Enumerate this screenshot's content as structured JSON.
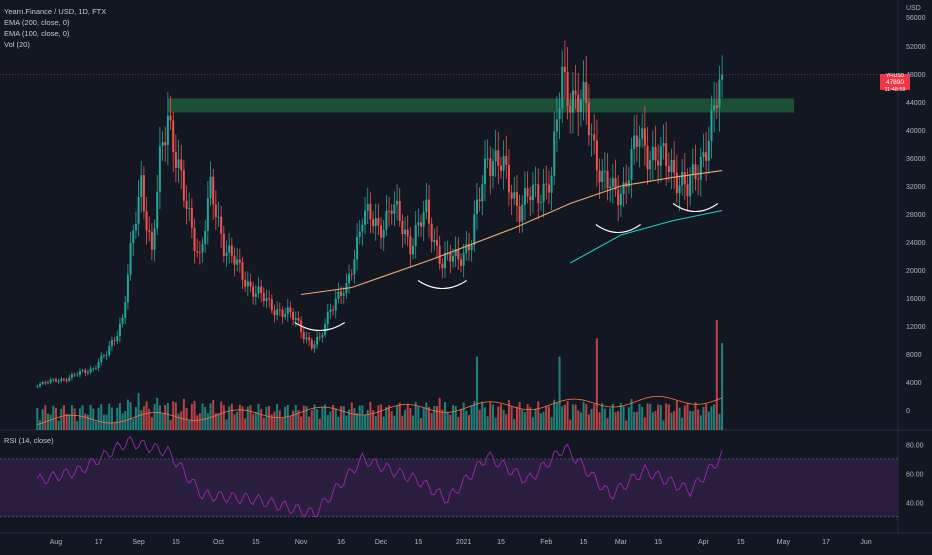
{
  "legend": {
    "symbol": "Yearn.Finance / USD, 1D, FTX",
    "ema200": "EMA (200, close, 0)",
    "ema100": "EMA (100, close, 0)",
    "vol": "Vol (20)",
    "rsi": "RSI (14, close)"
  },
  "axis": {
    "currency": "USD",
    "top_label": "56000",
    "price_ticks": [
      "52000",
      "48000",
      "44000",
      "40000",
      "36000",
      "32000",
      "28000",
      "24000",
      "20000",
      "16000",
      "12000",
      "8000",
      "4000",
      "0"
    ],
    "rsi_ticks": [
      "80.00",
      "60.00",
      "40.00"
    ],
    "x_ticks": [
      "Aug",
      "17",
      "Sep",
      "15",
      "Oct",
      "15",
      "Nov",
      "16",
      "Dec",
      "15",
      "2021",
      "15",
      "Feb",
      "15",
      "Mar",
      "15",
      "Apr",
      "15",
      "May",
      "17",
      "Jun"
    ]
  },
  "price_tag": {
    "symbol": "YFIUSD",
    "value": "47890",
    "time": "11:48:59"
  },
  "colors": {
    "background": "#131722",
    "up": "#26a69a",
    "down": "#ef5350",
    "ema_orange": "#f0a970",
    "ema_teal": "#26c6c6",
    "rsi": "#9c27b0",
    "zone": "#1f5b3a",
    "tag": "#f23645"
  },
  "chart_data": [
    {
      "type": "candlestick",
      "title": "Yearn.Finance / USD, 1D, FTX",
      "ylabel": "USD",
      "ylim": [
        0,
        56000
      ],
      "x_start": "2020-07-25",
      "x_end": "2021-06-01",
      "close_anchors": [
        [
          "2020-07-25",
          3700
        ],
        [
          "2020-08-05",
          4500
        ],
        [
          "2020-08-15",
          6000
        ],
        [
          "2020-08-20",
          8000
        ],
        [
          "2020-08-26",
          13000
        ],
        [
          "2020-08-30",
          25000
        ],
        [
          "2020-09-02",
          33000
        ],
        [
          "2020-09-06",
          22000
        ],
        [
          "2020-09-09",
          35000
        ],
        [
          "2020-09-12",
          43000
        ],
        [
          "2020-09-18",
          30000
        ],
        [
          "2020-09-24",
          22000
        ],
        [
          "2020-09-28",
          31000
        ],
        [
          "2020-10-03",
          24000
        ],
        [
          "2020-10-10",
          19000
        ],
        [
          "2020-10-20",
          15000
        ],
        [
          "2020-10-30",
          13000
        ],
        [
          "2020-11-05",
          9000
        ],
        [
          "2020-11-08",
          10000
        ],
        [
          "2020-11-12",
          15000
        ],
        [
          "2020-11-18",
          17000
        ],
        [
          "2020-11-24",
          28000
        ],
        [
          "2020-11-30",
          26000
        ],
        [
          "2020-12-05",
          29000
        ],
        [
          "2020-12-12",
          24000
        ],
        [
          "2020-12-18",
          28000
        ],
        [
          "2020-12-24",
          21000
        ],
        [
          "2020-12-30",
          22000
        ],
        [
          "2021-01-04",
          24000
        ],
        [
          "2021-01-10",
          37000
        ],
        [
          "2021-01-16",
          34000
        ],
        [
          "2021-01-22",
          29000
        ],
        [
          "2021-01-28",
          31000
        ],
        [
          "2021-02-03",
          33000
        ],
        [
          "2021-02-07",
          48000
        ],
        [
          "2021-02-12",
          44000
        ],
        [
          "2021-02-16",
          43000
        ],
        [
          "2021-02-22",
          33000
        ],
        [
          "2021-02-26",
          31000
        ],
        [
          "2021-03-02",
          32000
        ],
        [
          "2021-03-08",
          39000
        ],
        [
          "2021-03-14",
          36000
        ],
        [
          "2021-03-20",
          35000
        ],
        [
          "2021-03-26",
          31000
        ],
        [
          "2021-03-30",
          35000
        ],
        [
          "2021-04-04",
          40000
        ],
        [
          "2021-04-08",
          47890
        ]
      ],
      "resistance_zone": [
        42500,
        44500
      ],
      "last_price": 47890
    },
    {
      "type": "line",
      "series": [
        {
          "name": "EMA (100, close, 0)",
          "color": "#f0a970",
          "x": [
            "2020-11-01",
            "2020-11-20",
            "2020-12-20",
            "2021-01-20",
            "2021-02-10",
            "2021-03-01",
            "2021-03-20",
            "2021-04-08"
          ],
          "values": [
            16500,
            17500,
            21500,
            26000,
            29500,
            32000,
            33200,
            34200
          ]
        },
        {
          "name": "EMA (200, close, 0)",
          "color": "#26c6c6",
          "x": [
            "2021-02-10",
            "2021-03-01",
            "2021-03-20",
            "2021-04-08"
          ],
          "values": [
            21000,
            25000,
            27000,
            28500
          ]
        }
      ]
    },
    {
      "type": "bar",
      "title": "Vol (20)",
      "ylim": [
        0,
        12000
      ],
      "spikes": [
        [
          "2020-09-01",
          4000
        ],
        [
          "2020-11-20",
          3000
        ],
        [
          "2020-12-23",
          3500
        ],
        [
          "2021-01-06",
          8000
        ],
        [
          "2021-02-06",
          8000
        ],
        [
          "2021-02-20",
          10000
        ],
        [
          "2021-04-06",
          12000
        ],
        [
          "2021-04-08",
          9500
        ]
      ]
    },
    {
      "type": "line",
      "title": "RSI (14, close)",
      "ylim": [
        25,
        90
      ],
      "bands": [
        30,
        70
      ],
      "x": [
        "2020-07-25",
        "2020-08-10",
        "2020-08-28",
        "2020-09-12",
        "2020-09-25",
        "2020-10-15",
        "2020-11-06",
        "2020-11-24",
        "2020-12-15",
        "2020-12-26",
        "2021-01-10",
        "2021-01-25",
        "2021-02-08",
        "2021-02-25",
        "2021-03-10",
        "2021-03-27",
        "2021-04-08"
      ],
      "values": [
        55,
        62,
        82,
        75,
        45,
        42,
        32,
        70,
        55,
        42,
        72,
        55,
        78,
        45,
        62,
        48,
        72
      ]
    }
  ]
}
